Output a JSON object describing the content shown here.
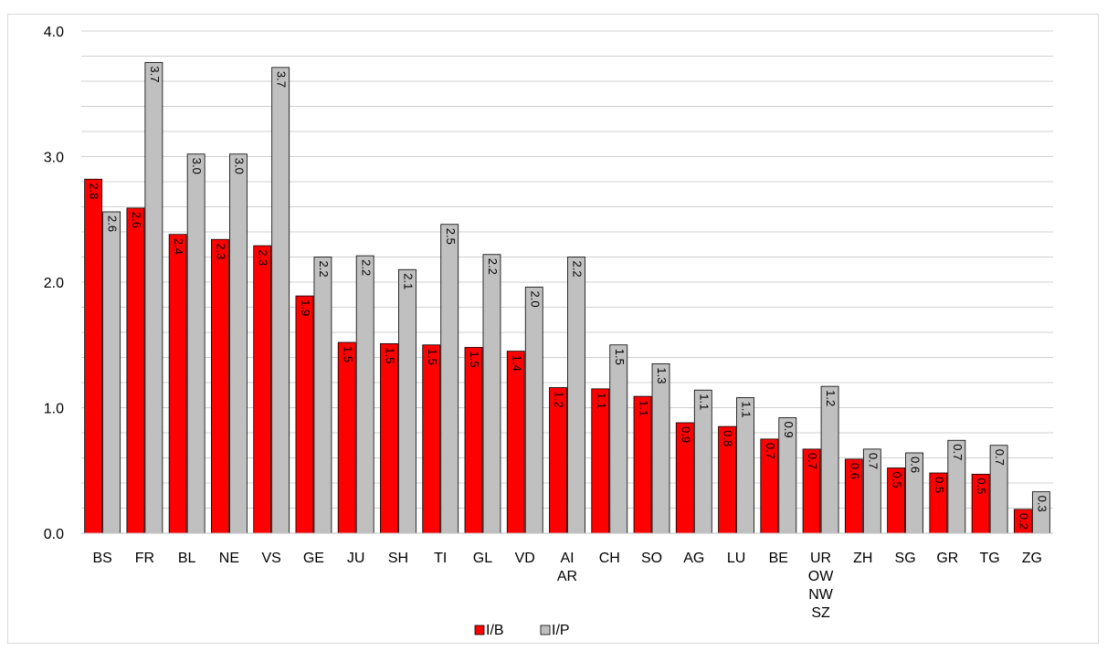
{
  "chart_data": {
    "type": "bar",
    "title": "",
    "xlabel": "",
    "ylabel": "",
    "ylim": [
      0,
      4.0
    ],
    "y_ticks": [
      "0.0",
      "1.0",
      "2.0",
      "3.0",
      "4.0"
    ],
    "grid": true,
    "legend_position": "bottom",
    "categories": [
      [
        "BS"
      ],
      [
        "FR"
      ],
      [
        "BL"
      ],
      [
        "NE"
      ],
      [
        "VS"
      ],
      [
        "GE"
      ],
      [
        "JU"
      ],
      [
        "SH"
      ],
      [
        "TI"
      ],
      [
        "GL"
      ],
      [
        "VD"
      ],
      [
        "AI",
        "AR"
      ],
      [
        "CH"
      ],
      [
        "SO"
      ],
      [
        "AG"
      ],
      [
        "LU"
      ],
      [
        "BE"
      ],
      [
        "UR",
        "OW",
        "NW",
        "SZ"
      ],
      [
        "ZH"
      ],
      [
        "SG"
      ],
      [
        "GR"
      ],
      [
        "TG"
      ],
      [
        "ZG"
      ]
    ],
    "series": [
      {
        "name": "I/B",
        "color": "#ff0000",
        "values": [
          2.82,
          2.59,
          2.38,
          2.34,
          2.29,
          1.89,
          1.52,
          1.51,
          1.5,
          1.48,
          1.45,
          1.16,
          1.15,
          1.09,
          0.88,
          0.85,
          0.75,
          0.67,
          0.59,
          0.52,
          0.48,
          0.47,
          0.19
        ],
        "labels": [
          "2.8",
          "2.6",
          "2.4",
          "2.3",
          "2.3",
          "1.9",
          "1.5",
          "1.5",
          "1.5",
          "1.5",
          "1.4",
          "1.2",
          "1.1",
          "1.1",
          "0.9",
          "0.8",
          "0.7",
          "0.7",
          "0.6",
          "0.5",
          "0.5",
          "0.5",
          "0.2"
        ]
      },
      {
        "name": "I/P",
        "color": "#c0c0c0",
        "values": [
          2.56,
          3.75,
          3.02,
          3.02,
          3.71,
          2.2,
          2.21,
          2.1,
          2.46,
          2.22,
          1.96,
          2.2,
          1.5,
          1.35,
          1.14,
          1.08,
          0.92,
          1.17,
          0.67,
          0.64,
          0.74,
          0.7,
          0.33
        ],
        "labels": [
          "2.6",
          "3.7",
          "3.0",
          "3.0",
          "3.7",
          "2.2",
          "2.2",
          "2.1",
          "2.5",
          "2.2",
          "2.0",
          "2.2",
          "1.5",
          "1.3",
          "1.1",
          "1.1",
          "0.9",
          "1.2",
          "0.7",
          "0.6",
          "0.7",
          "0.7",
          "0.3"
        ]
      }
    ]
  }
}
